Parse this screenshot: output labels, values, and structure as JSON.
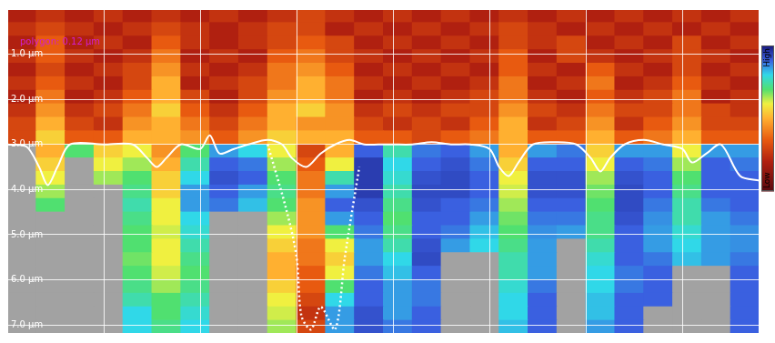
{
  "chart_data": {
    "type": "heatmap",
    "annotations": [
      {
        "text": "polygon: 0.12 µm",
        "color": "#d020d0"
      }
    ],
    "xlim": [
      0,
      7.8
    ],
    "xticks": [
      0,
      1,
      2,
      3,
      4,
      5,
      6,
      7
    ],
    "ylim": [
      7.2,
      0
    ],
    "yticks": [
      {
        "value": 1,
        "label": "1.0 µm"
      },
      {
        "value": 2,
        "label": "2.0 µm"
      },
      {
        "value": 3,
        "label": "3.0 µm"
      },
      {
        "value": 4,
        "label": "4.0 µm"
      },
      {
        "value": 5,
        "label": "5.0 µm"
      },
      {
        "value": 6,
        "label": "6.0 µm"
      },
      {
        "value": 7,
        "label": "7.0 µm"
      }
    ],
    "tick_labels": "y",
    "grid": true,
    "heatmap": {
      "x": [
        0.15,
        0.45,
        0.75,
        1.05,
        1.35,
        1.65,
        1.95,
        2.25,
        2.55,
        2.85,
        3.15,
        3.45,
        3.75,
        4.05,
        4.35,
        4.65,
        4.95,
        5.25,
        5.55,
        5.85,
        6.15,
        6.45,
        6.75,
        7.05,
        7.35,
        7.65
      ],
      "y": [
        0.15,
        0.45,
        0.75,
        1.05,
        1.35,
        1.65,
        1.95,
        2.25,
        2.55,
        2.85,
        3.15,
        3.45,
        3.75,
        4.05,
        4.35,
        4.65,
        4.95,
        5.25,
        5.55,
        5.85,
        6.15,
        6.45,
        6.75,
        7.05
      ],
      "values": [
        [
          0.2,
          0.25,
          0.2,
          0.25,
          0.2,
          0.25,
          0.2,
          0.25,
          0.2,
          0.25,
          0.3,
          0.25,
          0.2,
          0.25,
          0.2,
          0.25,
          0.2,
          0.25,
          0.2,
          0.25,
          0.2,
          0.25,
          0.2,
          0.25,
          0.2,
          0.25
        ],
        [
          0.25,
          0.3,
          0.25,
          0.2,
          0.25,
          0.3,
          0.25,
          0.2,
          0.25,
          0.3,
          0.3,
          0.2,
          0.25,
          0.2,
          0.25,
          0.2,
          0.25,
          0.3,
          0.25,
          0.2,
          0.25,
          0.2,
          0.25,
          0.2,
          0.25,
          0.2
        ],
        [
          0.2,
          0.35,
          0.2,
          0.25,
          0.2,
          0.35,
          0.25,
          0.2,
          0.25,
          0.3,
          0.35,
          0.3,
          0.2,
          0.25,
          0.2,
          0.25,
          0.2,
          0.3,
          0.25,
          0.3,
          0.2,
          0.25,
          0.2,
          0.3,
          0.2,
          0.25
        ],
        [
          0.25,
          0.35,
          0.25,
          0.2,
          0.25,
          0.4,
          0.2,
          0.25,
          0.2,
          0.35,
          0.4,
          0.3,
          0.25,
          0.2,
          0.25,
          0.2,
          0.25,
          0.35,
          0.2,
          0.3,
          0.25,
          0.2,
          0.25,
          0.3,
          0.25,
          0.2
        ],
        [
          0.2,
          0.3,
          0.2,
          0.25,
          0.3,
          0.45,
          0.25,
          0.2,
          0.25,
          0.4,
          0.45,
          0.35,
          0.2,
          0.25,
          0.2,
          0.25,
          0.2,
          0.35,
          0.25,
          0.2,
          0.35,
          0.25,
          0.2,
          0.3,
          0.2,
          0.25
        ],
        [
          0.25,
          0.35,
          0.25,
          0.2,
          0.3,
          0.5,
          0.2,
          0.25,
          0.3,
          0.4,
          0.5,
          0.4,
          0.25,
          0.2,
          0.25,
          0.2,
          0.25,
          0.4,
          0.2,
          0.25,
          0.4,
          0.2,
          0.25,
          0.35,
          0.25,
          0.2
        ],
        [
          0.2,
          0.4,
          0.2,
          0.25,
          0.35,
          0.5,
          0.3,
          0.2,
          0.3,
          0.45,
          0.5,
          0.4,
          0.2,
          0.25,
          0.2,
          0.25,
          0.3,
          0.4,
          0.25,
          0.2,
          0.35,
          0.25,
          0.3,
          0.4,
          0.2,
          0.25
        ],
        [
          0.25,
          0.45,
          0.25,
          0.3,
          0.4,
          0.55,
          0.35,
          0.25,
          0.35,
          0.5,
          0.55,
          0.45,
          0.25,
          0.3,
          0.25,
          0.3,
          0.3,
          0.45,
          0.3,
          0.25,
          0.4,
          0.3,
          0.3,
          0.4,
          0.3,
          0.25
        ],
        [
          0.3,
          0.5,
          0.3,
          0.25,
          0.45,
          0.5,
          0.4,
          0.3,
          0.4,
          0.5,
          0.45,
          0.45,
          0.3,
          0.25,
          0.3,
          0.25,
          0.35,
          0.5,
          0.25,
          0.3,
          0.45,
          0.25,
          0.35,
          0.45,
          0.3,
          0.3
        ],
        [
          0.3,
          0.55,
          0.35,
          0.35,
          0.5,
          0.5,
          0.45,
          0.35,
          0.45,
          0.55,
          0.5,
          0.5,
          0.35,
          0.35,
          0.3,
          0.35,
          0.4,
          0.5,
          0.35,
          0.35,
          0.5,
          0.35,
          0.4,
          0.5,
          0.35,
          0.35
        ],
        [
          null,
          0.5,
          0.7,
          0.55,
          0.6,
          0.45,
          0.7,
          0.85,
          0.8,
          0.6,
          0.3,
          0.5,
          0.9,
          0.75,
          0.88,
          0.9,
          0.85,
          0.5,
          0.85,
          0.88,
          0.55,
          0.85,
          0.85,
          0.6,
          0.85,
          0.85
        ],
        [
          null,
          0.55,
          null,
          0.6,
          0.65,
          0.5,
          0.75,
          0.9,
          0.88,
          0.65,
          0.35,
          0.6,
          0.95,
          0.8,
          0.9,
          0.92,
          0.88,
          0.55,
          0.9,
          0.9,
          0.6,
          0.9,
          0.88,
          0.65,
          0.9,
          0.88
        ],
        [
          null,
          0.6,
          null,
          0.65,
          0.7,
          0.55,
          0.8,
          0.92,
          0.9,
          0.7,
          0.4,
          0.75,
          0.95,
          0.78,
          0.92,
          0.93,
          0.9,
          0.6,
          0.92,
          0.92,
          0.65,
          0.92,
          0.9,
          0.7,
          0.9,
          0.9
        ],
        [
          null,
          0.65,
          null,
          null,
          0.72,
          0.55,
          0.85,
          0.9,
          0.85,
          0.72,
          0.4,
          0.85,
          0.95,
          0.75,
          0.93,
          0.93,
          0.9,
          0.62,
          0.92,
          0.92,
          0.68,
          0.93,
          0.9,
          0.72,
          0.9,
          0.9
        ],
        [
          null,
          0.7,
          null,
          null,
          0.75,
          0.6,
          0.85,
          0.88,
          0.82,
          0.7,
          0.45,
          0.9,
          0.92,
          0.72,
          0.92,
          0.9,
          0.88,
          0.65,
          0.9,
          0.9,
          0.7,
          0.93,
          0.88,
          0.75,
          0.88,
          0.9
        ],
        [
          null,
          null,
          null,
          null,
          0.72,
          0.6,
          0.8,
          null,
          null,
          0.65,
          0.45,
          0.85,
          0.9,
          0.7,
          0.9,
          0.9,
          0.85,
          0.68,
          0.88,
          0.88,
          0.72,
          0.92,
          0.86,
          0.75,
          0.85,
          0.88
        ],
        [
          null,
          null,
          null,
          null,
          0.7,
          0.62,
          0.78,
          null,
          null,
          0.6,
          0.45,
          0.7,
          0.88,
          0.72,
          0.9,
          0.88,
          0.82,
          0.7,
          0.86,
          0.85,
          0.72,
          0.9,
          0.85,
          0.78,
          0.85,
          0.86
        ],
        [
          null,
          null,
          null,
          null,
          0.7,
          0.6,
          0.75,
          null,
          null,
          0.55,
          0.4,
          0.6,
          0.85,
          0.75,
          0.92,
          0.85,
          0.8,
          0.72,
          0.85,
          null,
          0.75,
          0.9,
          0.85,
          0.8,
          0.85,
          0.86
        ],
        [
          null,
          null,
          null,
          null,
          0.68,
          0.6,
          0.72,
          null,
          null,
          0.5,
          0.4,
          0.55,
          0.85,
          0.8,
          0.93,
          null,
          null,
          0.75,
          0.85,
          null,
          0.78,
          0.9,
          0.88,
          0.82,
          0.85,
          0.88
        ],
        [
          null,
          null,
          null,
          null,
          0.7,
          0.62,
          0.7,
          null,
          null,
          0.5,
          0.35,
          0.6,
          0.88,
          0.82,
          0.9,
          null,
          null,
          0.75,
          0.85,
          null,
          0.8,
          0.88,
          0.9,
          null,
          null,
          0.9
        ],
        [
          null,
          null,
          null,
          null,
          0.72,
          0.65,
          0.72,
          null,
          null,
          0.55,
          0.35,
          0.7,
          0.9,
          0.85,
          0.88,
          null,
          null,
          0.78,
          0.88,
          null,
          0.8,
          0.88,
          0.9,
          null,
          null,
          0.9
        ],
        [
          null,
          null,
          null,
          null,
          0.75,
          0.7,
          0.75,
          null,
          null,
          0.6,
          0.3,
          0.8,
          0.9,
          0.85,
          0.88,
          null,
          null,
          0.8,
          0.9,
          null,
          0.82,
          0.9,
          0.9,
          null,
          null,
          0.9
        ],
        [
          null,
          null,
          null,
          null,
          0.8,
          0.7,
          0.78,
          null,
          null,
          0.62,
          0.25,
          0.85,
          0.92,
          0.85,
          0.9,
          null,
          null,
          0.8,
          0.9,
          null,
          0.82,
          0.9,
          null,
          null,
          null,
          0.9
        ],
        [
          null,
          null,
          null,
          null,
          0.8,
          0.72,
          0.8,
          null,
          null,
          0.65,
          0.3,
          0.85,
          0.92,
          0.88,
          0.9,
          null,
          null,
          0.82,
          0.9,
          null,
          0.85,
          0.9,
          null,
          null,
          null,
          0.9
        ]
      ]
    },
    "colorbar": {
      "range": [
        0,
        1
      ],
      "ticks": [
        {
          "value": 1,
          "label": "High"
        },
        {
          "value": 0,
          "label": "Low"
        }
      ]
    },
    "series": [
      {
        "color": "#ffffff",
        "line_style": "solid",
        "x": [
          0,
          0.2,
          0.33,
          0.42,
          0.52,
          0.65,
          1.0,
          1.3,
          1.45,
          1.55,
          1.65,
          1.8,
          2.0,
          2.1,
          2.2,
          2.35,
          2.5,
          2.7,
          2.85,
          2.95,
          3.1,
          3.25,
          3.4,
          3.55,
          3.7,
          3.85,
          4.0,
          4.2,
          4.4,
          4.6,
          4.8,
          5.0,
          5.1,
          5.2,
          5.3,
          5.45,
          5.7,
          5.9,
          6.05,
          6.15,
          6.25,
          6.4,
          6.6,
          6.8,
          7.0,
          7.1,
          7.25,
          7.4,
          7.6,
          7.8
        ],
        "values": [
          3.0,
          3.05,
          3.5,
          3.9,
          3.5,
          3.0,
          3.0,
          3.0,
          3.3,
          3.5,
          3.3,
          3.0,
          3.1,
          2.8,
          3.2,
          3.1,
          3.0,
          2.9,
          3.0,
          3.3,
          3.5,
          3.2,
          3.0,
          2.9,
          3.0,
          3.0,
          3.0,
          3.0,
          2.95,
          3.0,
          3.0,
          3.1,
          3.5,
          3.7,
          3.4,
          3.0,
          2.95,
          3.0,
          3.3,
          3.6,
          3.3,
          3.0,
          2.9,
          3.0,
          3.1,
          3.4,
          3.2,
          3.0,
          3.7,
          3.8
        ]
      },
      {
        "color": "#ffffff",
        "line_style": "dotted",
        "x": [
          2.7,
          2.9,
          3.0,
          3.05,
          3.15,
          3.25,
          3.4,
          3.5,
          3.65
        ],
        "values": [
          3.0,
          4.5,
          5.5,
          6.8,
          7.1,
          6.6,
          7.1,
          5.5,
          3.5
        ]
      }
    ]
  }
}
